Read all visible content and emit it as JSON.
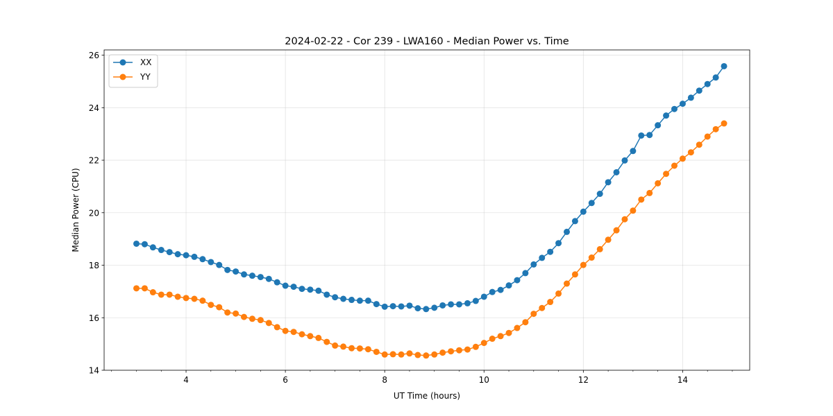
{
  "chart_data": {
    "type": "line",
    "title": "2024-02-22 - Cor 239 - LWA160 - Median Power vs. Time",
    "xlabel": "UT Time (hours)",
    "ylabel": "Median Power (CPU)",
    "xlim": [
      2.35,
      15.35
    ],
    "ylim": [
      14,
      26.2
    ],
    "xticks": [
      4,
      6,
      8,
      10,
      12,
      14
    ],
    "xtick_labels": [
      "4",
      "6",
      "8",
      "10",
      "12",
      "14"
    ],
    "xminor_step": 0.5,
    "yticks": [
      14,
      16,
      18,
      20,
      22,
      24,
      26
    ],
    "ytick_labels": [
      "14",
      "16",
      "18",
      "20",
      "22",
      "24",
      "26"
    ],
    "grid": true,
    "legend_position": "top-left",
    "series": [
      {
        "name": "XX",
        "color": "#1f77b4",
        "x": [
          3.0,
          3.1667,
          3.3333,
          3.5,
          3.6667,
          3.8333,
          4.0,
          4.1667,
          4.3333,
          4.5,
          4.6667,
          4.8333,
          5.0,
          5.1667,
          5.3333,
          5.5,
          5.6667,
          5.8333,
          6.0,
          6.1667,
          6.3333,
          6.5,
          6.6667,
          6.8333,
          7.0,
          7.1667,
          7.3333,
          7.5,
          7.6667,
          7.8333,
          8.0,
          8.1667,
          8.3333,
          8.5,
          8.6667,
          8.8333,
          9.0,
          9.1667,
          9.3333,
          9.5,
          9.6667,
          9.8333,
          10.0,
          10.1667,
          10.3333,
          10.5,
          10.6667,
          10.8333,
          11.0,
          11.1667,
          11.3333,
          11.5,
          11.6667,
          11.8333,
          12.0,
          12.1667,
          12.3333,
          12.5,
          12.6667,
          12.8333,
          13.0,
          13.1667,
          13.3333,
          13.5,
          13.6667,
          13.8333,
          14.0,
          14.1667,
          14.3333,
          14.5,
          14.6667,
          14.8333
        ],
        "values": [
          18.82,
          18.8,
          18.68,
          18.58,
          18.5,
          18.42,
          18.38,
          18.32,
          18.23,
          18.12,
          18.01,
          17.82,
          17.76,
          17.65,
          17.6,
          17.55,
          17.48,
          17.35,
          17.22,
          17.18,
          17.1,
          17.07,
          17.03,
          16.88,
          16.78,
          16.72,
          16.68,
          16.65,
          16.65,
          16.52,
          16.42,
          16.44,
          16.43,
          16.46,
          16.36,
          16.33,
          16.38,
          16.47,
          16.51,
          16.51,
          16.55,
          16.64,
          16.8,
          16.98,
          17.06,
          17.23,
          17.43,
          17.7,
          18.03,
          18.28,
          18.51,
          18.84,
          19.27,
          19.68,
          20.04,
          20.37,
          20.72,
          21.16,
          21.54,
          21.99,
          22.35,
          22.94,
          22.96,
          23.33,
          23.7,
          23.95,
          24.15,
          24.38,
          24.65,
          24.9,
          25.15,
          25.58
        ]
      },
      {
        "name": "YY",
        "color": "#ff7f0e",
        "x": [
          3.0,
          3.1667,
          3.3333,
          3.5,
          3.6667,
          3.8333,
          4.0,
          4.1667,
          4.3333,
          4.5,
          4.6667,
          4.8333,
          5.0,
          5.1667,
          5.3333,
          5.5,
          5.6667,
          5.8333,
          6.0,
          6.1667,
          6.3333,
          6.5,
          6.6667,
          6.8333,
          7.0,
          7.1667,
          7.3333,
          7.5,
          7.6667,
          7.8333,
          8.0,
          8.1667,
          8.3333,
          8.5,
          8.6667,
          8.8333,
          9.0,
          9.1667,
          9.3333,
          9.5,
          9.6667,
          9.8333,
          10.0,
          10.1667,
          10.3333,
          10.5,
          10.6667,
          10.8333,
          11.0,
          11.1667,
          11.3333,
          11.5,
          11.6667,
          11.8333,
          12.0,
          12.1667,
          12.3333,
          12.5,
          12.6667,
          12.8333,
          13.0,
          13.1667,
          13.3333,
          13.5,
          13.6667,
          13.8333,
          14.0,
          14.1667,
          14.3333,
          14.5,
          14.6667,
          14.8333
        ],
        "values": [
          17.12,
          17.12,
          16.97,
          16.88,
          16.88,
          16.8,
          16.75,
          16.72,
          16.65,
          16.49,
          16.4,
          16.2,
          16.16,
          16.03,
          15.96,
          15.91,
          15.8,
          15.64,
          15.5,
          15.46,
          15.37,
          15.3,
          15.23,
          15.08,
          14.94,
          14.9,
          14.84,
          14.83,
          14.8,
          14.7,
          14.6,
          14.61,
          14.6,
          14.64,
          14.58,
          14.56,
          14.6,
          14.67,
          14.72,
          14.76,
          14.79,
          14.89,
          15.04,
          15.2,
          15.3,
          15.42,
          15.61,
          15.83,
          16.15,
          16.37,
          16.6,
          16.92,
          17.3,
          17.65,
          18.01,
          18.29,
          18.61,
          18.97,
          19.33,
          19.75,
          20.08,
          20.5,
          20.75,
          21.12,
          21.48,
          21.79,
          22.06,
          22.3,
          22.59,
          22.9,
          23.18,
          23.4
        ]
      }
    ]
  }
}
